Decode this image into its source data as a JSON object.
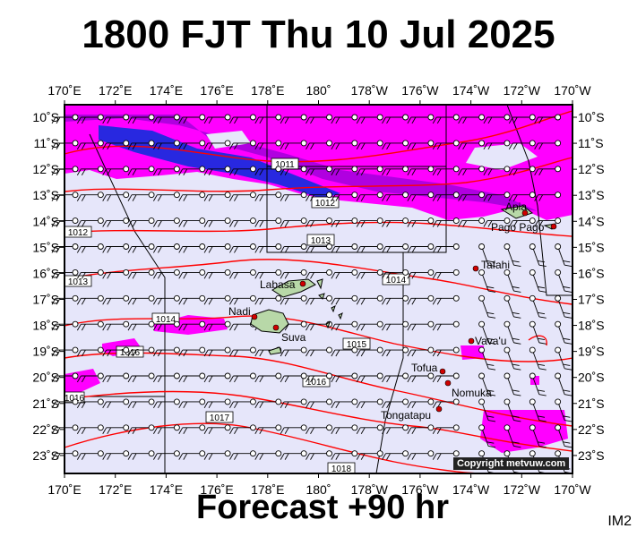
{
  "header": {
    "title": "1800 FJT Thu 10 Jul 2025"
  },
  "footer": {
    "subtitle": "Forecast +90 hr",
    "code": "IM2"
  },
  "map": {
    "lon_labels": [
      "170˚E",
      "172˚E",
      "174˚E",
      "176˚E",
      "178˚E",
      "180˚",
      "178˚W",
      "176˚W",
      "174˚W",
      "172˚W",
      "170˚W"
    ],
    "lat_labels": [
      "10˚S",
      "11˚S",
      "12˚S",
      "13˚S",
      "14˚S",
      "15˚S",
      "16˚S",
      "17˚S",
      "18˚S",
      "19˚S",
      "20˚S",
      "21˚S",
      "22˚S",
      "23˚S"
    ],
    "places": [
      {
        "name": "Apia",
        "label": "Apia"
      },
      {
        "name": "Pago-Pago",
        "label": "Pago Pago"
      },
      {
        "name": "Tafahi",
        "label": "Tafahi"
      },
      {
        "name": "Labasa",
        "label": "Labasa"
      },
      {
        "name": "Nadi",
        "label": "Nadi"
      },
      {
        "name": "Suva",
        "label": "Suva"
      },
      {
        "name": "Vavau",
        "label": "Vava'u"
      },
      {
        "name": "Tofua",
        "label": "Tofua"
      },
      {
        "name": "Nomuka",
        "label": "Nomuka"
      },
      {
        "name": "Tongatapu",
        "label": "Tongatapu"
      }
    ],
    "isobar_labels": [
      "1011",
      "1012",
      "1012",
      "1013",
      "1013",
      "1014",
      "1014",
      "1015",
      "1016",
      "1016",
      "1016",
      "1017",
      "1018"
    ],
    "copyright": "Copyright metvuw.com",
    "colors": {
      "ocean": "#e6e6fa",
      "rain_magenta": "#ff00ff",
      "rain_purple": "#b000e0",
      "rain_blue": "#2828e0",
      "isobar": "#ff0000",
      "land": "#b8d8a8"
    }
  }
}
